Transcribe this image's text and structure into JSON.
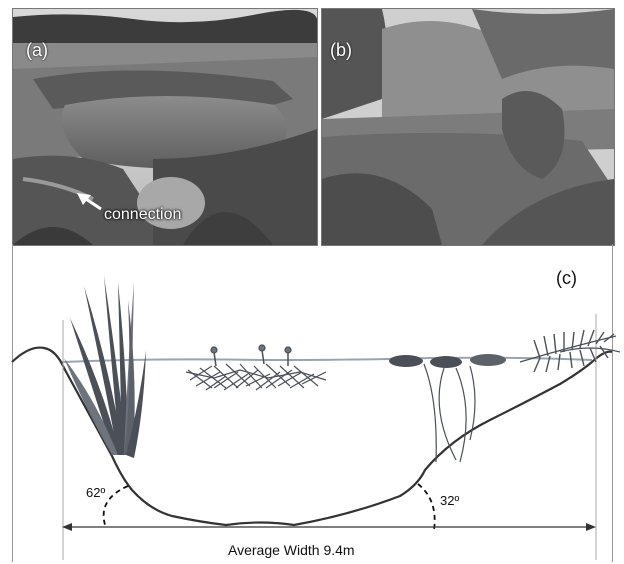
{
  "panels": {
    "a": {
      "label": "(a)",
      "annotation": "connection"
    },
    "b": {
      "label": "(b)"
    },
    "c": {
      "label": "(c)",
      "left_angle": "62º",
      "right_angle": "32º",
      "width_label": "Average Width 9.4m"
    }
  },
  "colors": {
    "profile_line": "#333333",
    "water_line": "#9aa4b0",
    "plant_dark": "#4a4f58",
    "plant_mid": "#6e747e"
  }
}
